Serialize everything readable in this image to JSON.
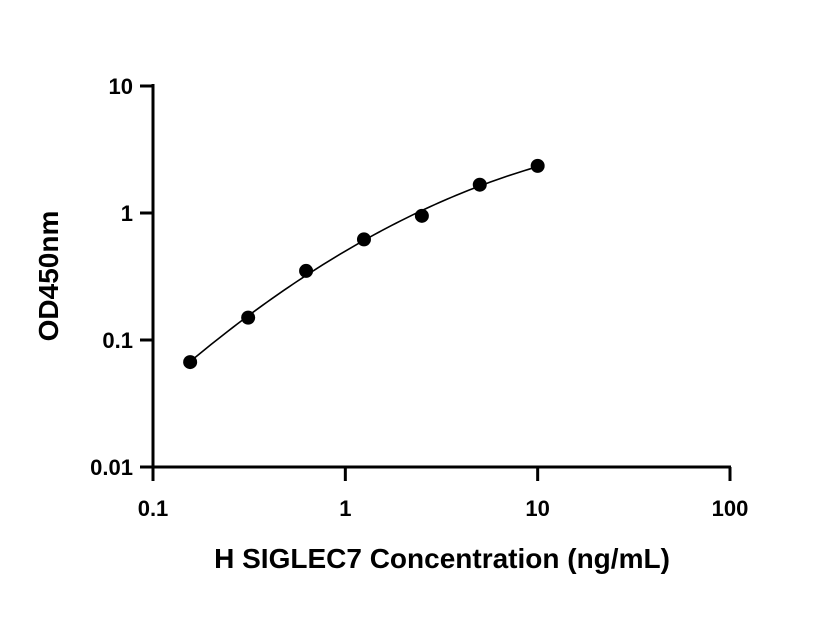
{
  "chart_data": {
    "type": "scatter",
    "title": "",
    "xlabel": "H SIGLEC7 Concentration (ng/mL)",
    "ylabel": "OD450nm",
    "x_scale": "log",
    "y_scale": "log",
    "xlim": [
      0.1,
      100
    ],
    "ylim": [
      0.01,
      10
    ],
    "x_ticks": [
      "0.1",
      "1",
      "10",
      "100"
    ],
    "y_ticks": [
      "0.01",
      "0.1",
      "1",
      "10"
    ],
    "grid": false,
    "legend": "none",
    "series": [
      {
        "x": [
          0.156,
          0.3125,
          0.625,
          1.25,
          2.5,
          5,
          10
        ],
        "y": [
          0.067,
          0.15,
          0.35,
          0.62,
          0.95,
          1.67,
          2.35
        ],
        "marker": "circle",
        "color": "#000000",
        "fit": "curve"
      }
    ]
  }
}
